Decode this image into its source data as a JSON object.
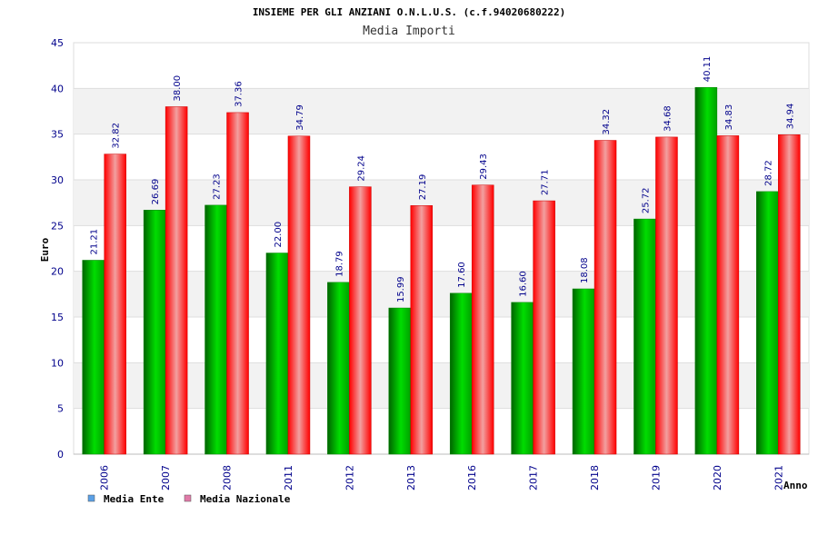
{
  "chart_data": {
    "type": "bar",
    "title": "INSIEME PER GLI ANZIANI O.N.L.U.S. (c.f.94020680222)",
    "subtitle": "Media Importi",
    "xlabel": "Anno",
    "ylabel": "Euro",
    "ylim": [
      0,
      45
    ],
    "yticks": [
      0,
      5,
      10,
      15,
      20,
      25,
      30,
      35,
      40,
      45
    ],
    "grid": true,
    "legend_position": "bottom-left",
    "categories": [
      "2006",
      "2007",
      "2008",
      "2011",
      "2012",
      "2013",
      "2016",
      "2017",
      "2018",
      "2019",
      "2020",
      "2021"
    ],
    "series": [
      {
        "name": "Media Ente",
        "color": "#00b000",
        "legend_color": "#5aa0e6",
        "values": [
          21.21,
          26.69,
          27.23,
          22.0,
          18.79,
          15.99,
          17.6,
          16.6,
          18.08,
          25.72,
          40.11,
          28.72
        ],
        "labels": [
          "21.21",
          "26.69",
          "27.23",
          "22.00",
          "18.79",
          "15.99",
          "17.60",
          "16.60",
          "18.08",
          "25.72",
          "40.11",
          "28.72"
        ]
      },
      {
        "name": "Media Nazionale",
        "color": "#ff0000",
        "legend_color": "#e07aa8",
        "values": [
          32.82,
          38.0,
          37.36,
          34.79,
          29.24,
          27.19,
          29.43,
          27.71,
          34.32,
          34.68,
          34.83,
          34.94
        ],
        "labels": [
          "32.82",
          "38.00",
          "37.36",
          "34.79",
          "29.24",
          "27.19",
          "29.43",
          "27.71",
          "34.32",
          "34.68",
          "34.83",
          "34.94"
        ]
      }
    ]
  }
}
